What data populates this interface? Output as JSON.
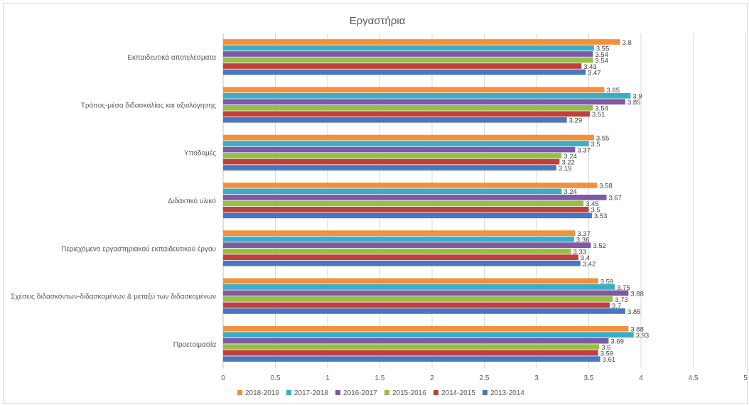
{
  "chart_data": {
    "type": "bar",
    "orientation": "horizontal",
    "title": "Εργαστήρια",
    "xlabel": "",
    "ylabel": "",
    "xlim": [
      0,
      5
    ],
    "x_ticks": [
      "0",
      "0.5",
      "1",
      "1.5",
      "2",
      "2.5",
      "3",
      "3.5",
      "4",
      "4.5",
      "5"
    ],
    "grid": "vertical",
    "legend_position": "bottom",
    "categories": [
      "Εκπαιδευτικά αποτελέσματα",
      "Τρόπος-μέσα διδασκαλίας και αξιολόγησης",
      "Υποδομές",
      "Διδακτικό υλικό",
      "Περιεχόμενο εργαστηριακού εκπαιδευτικού έργου",
      "Σχέσεις διδασκόντων-διδασκομένων & μεταξύ των διδασκομένων",
      "Προετοιμασία"
    ],
    "series": [
      {
        "name": "2018-2019",
        "color": "#f4903a",
        "values": [
          3.8,
          3.65,
          3.55,
          3.58,
          3.37,
          3.59,
          3.88
        ]
      },
      {
        "name": "2017-2018",
        "color": "#3dadc4",
        "values": [
          3.55,
          3.9,
          3.5,
          3.24,
          3.36,
          3.75,
          3.93
        ]
      },
      {
        "name": "2016-2017",
        "color": "#7e5aa6",
        "values": [
          3.54,
          3.85,
          3.37,
          3.67,
          3.52,
          3.88,
          3.69
        ]
      },
      {
        "name": "2015-2016",
        "color": "#98bf45",
        "values": [
          3.54,
          3.54,
          3.24,
          3.45,
          3.33,
          3.73,
          3.6
        ]
      },
      {
        "name": "2014-2015",
        "color": "#c0403d",
        "values": [
          3.43,
          3.51,
          3.22,
          3.5,
          3.4,
          3.7,
          3.59
        ]
      },
      {
        "name": "2013-2014",
        "color": "#4877be",
        "values": [
          3.47,
          3.29,
          3.19,
          3.53,
          3.42,
          3.85,
          3.61
        ]
      }
    ]
  }
}
